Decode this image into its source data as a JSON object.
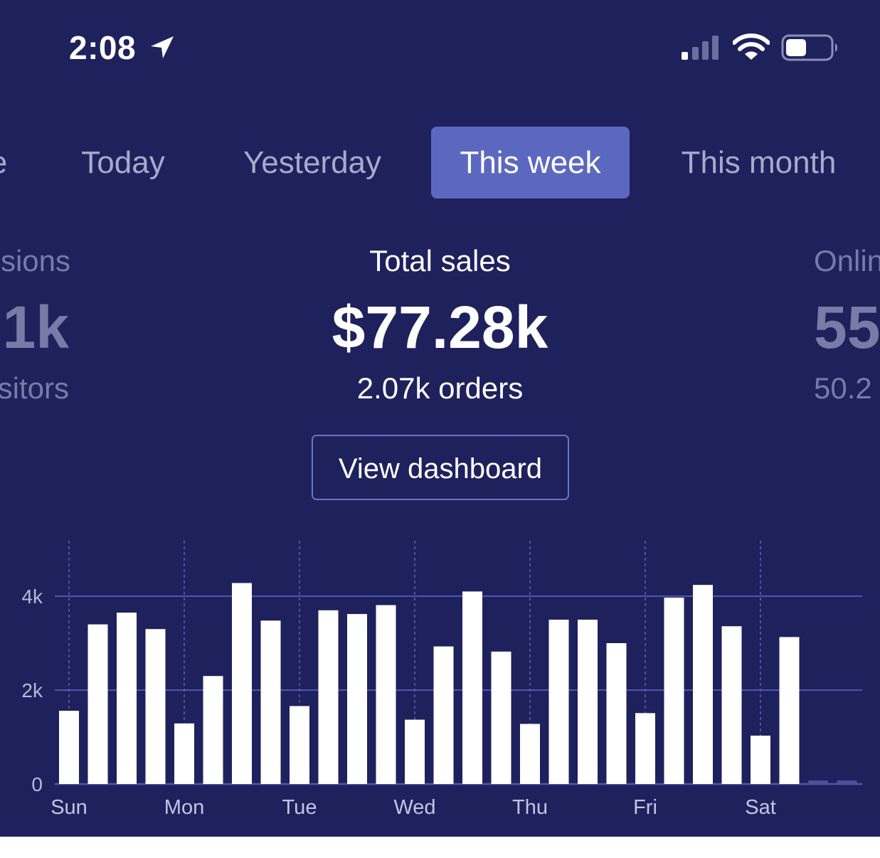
{
  "status_bar": {
    "time": "2:08"
  },
  "tabs": [
    {
      "label": "e",
      "active": false
    },
    {
      "label": "Today",
      "active": false
    },
    {
      "label": "Yesterday",
      "active": false
    },
    {
      "label": "This week",
      "active": true
    },
    {
      "label": "This month",
      "active": false
    }
  ],
  "stats": {
    "left": {
      "label": "sions",
      "value": "1k",
      "sub": "sitors"
    },
    "center": {
      "label": "Total sales",
      "value": "$77.28k",
      "sub": "2.07k orders"
    },
    "right": {
      "label": "Onlin",
      "value": "55",
      "sub": "50.2"
    }
  },
  "view_dashboard_label": "View dashboard",
  "colors": {
    "background": "#1e215c",
    "tab_active": "#5c68c0",
    "bar": "#ffffff",
    "gridline": "#4d55b0"
  },
  "chart_data": {
    "type": "bar",
    "y_ticks": [
      "0",
      "2k",
      "4k"
    ],
    "ylim": [
      0,
      5000
    ],
    "x_labels": [
      "Sun",
      "Mon",
      "Tue",
      "Wed",
      "Thu",
      "Fri",
      "Sat"
    ],
    "bars_per_day": 4,
    "values": [
      1560,
      3400,
      3650,
      3300,
      1290,
      2300,
      4280,
      3480,
      1660,
      3700,
      3620,
      3810,
      1370,
      2930,
      4100,
      2820,
      1280,
      3500,
      3500,
      3000,
      1510,
      3970,
      4240,
      3360,
      1030,
      3130,
      0,
      0
    ],
    "future_placeholders": 2
  }
}
